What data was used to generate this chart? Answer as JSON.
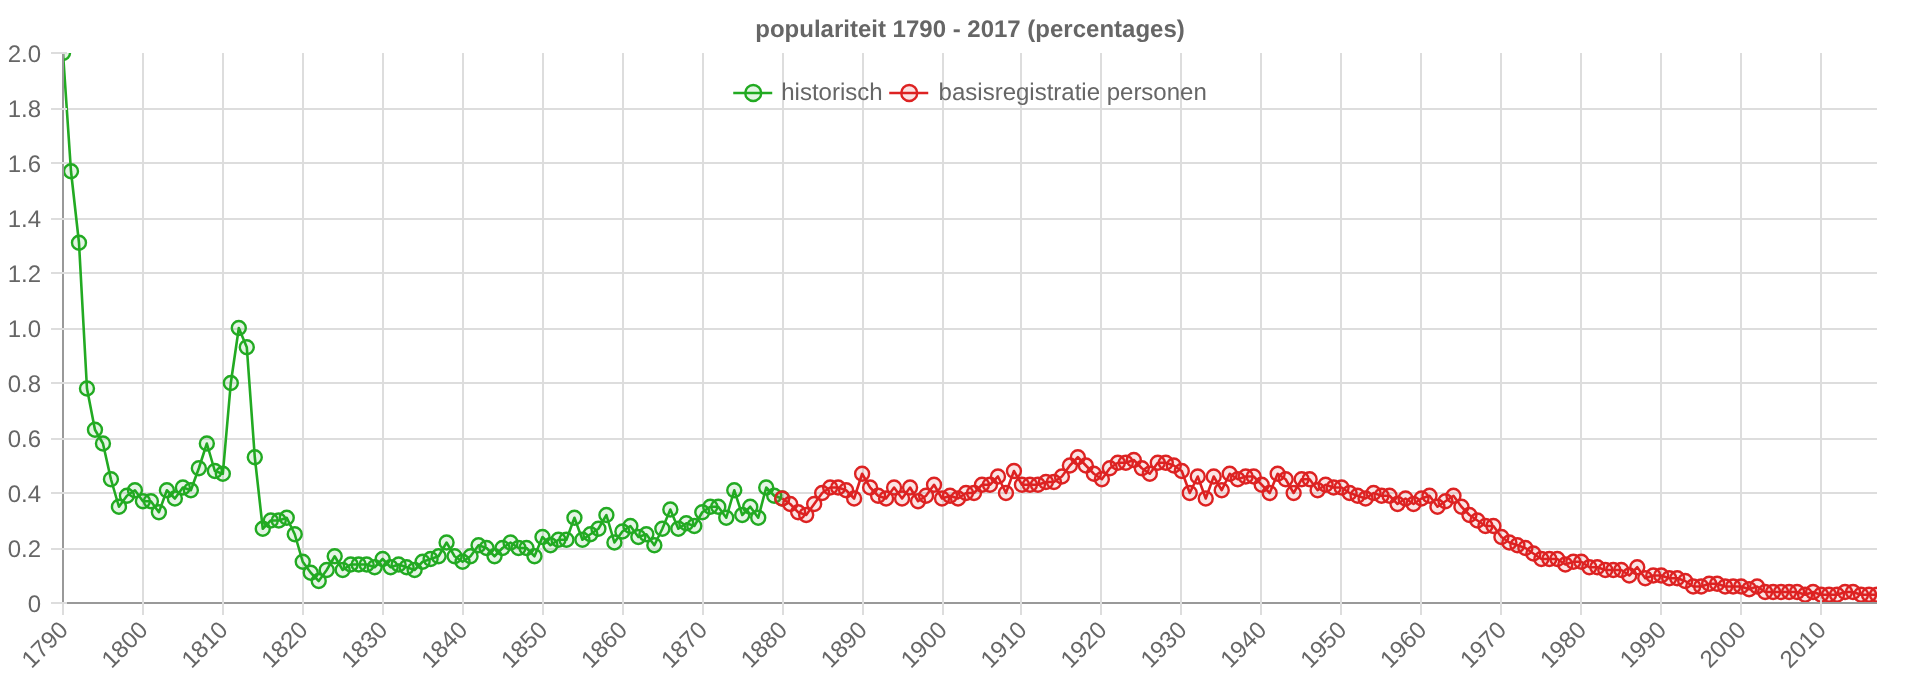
{
  "chart_data": {
    "type": "line",
    "title": "populariteit 1790 - 2017 (percentages)",
    "xlim": [
      1790,
      2017
    ],
    "xticks": [
      1790,
      1800,
      1810,
      1820,
      1830,
      1840,
      1850,
      1860,
      1870,
      1880,
      1890,
      1900,
      1910,
      1920,
      1930,
      1940,
      1950,
      1960,
      1970,
      1980,
      1990,
      2000,
      2010
    ],
    "ylim": [
      0,
      2
    ],
    "yticks": [
      0,
      0.2,
      0.4,
      0.6,
      0.8,
      {
        "value": 1,
        "label": "1.0"
      },
      1.2,
      1.4,
      1.6,
      1.8,
      {
        "value": 2,
        "label": "2.0"
      }
    ],
    "grid": true,
    "legend": "top",
    "marker": "circle",
    "line_style": "solid",
    "series": [
      {
        "name": "historisch",
        "color": "#22aa22",
        "x": [
          1790,
          1791,
          1792,
          1793,
          1794,
          1795,
          1796,
          1797,
          1798,
          1799,
          1800,
          1801,
          1802,
          1803,
          1804,
          1805,
          1806,
          1807,
          1808,
          1809,
          1810,
          1811,
          1812,
          1813,
          1814,
          1815,
          1816,
          1817,
          1818,
          1819,
          1820,
          1821,
          1822,
          1823,
          1824,
          1825,
          1826,
          1827,
          1828,
          1829,
          1830,
          1831,
          1832,
          1833,
          1834,
          1835,
          1836,
          1837,
          1838,
          1839,
          1840,
          1841,
          1842,
          1843,
          1844,
          1845,
          1846,
          1847,
          1848,
          1849,
          1850,
          1851,
          1852,
          1853,
          1854,
          1855,
          1856,
          1857,
          1858,
          1859,
          1860,
          1861,
          1862,
          1863,
          1864,
          1865,
          1866,
          1867,
          1868,
          1869,
          1870,
          1871,
          1872,
          1873,
          1874,
          1875,
          1876,
          1877,
          1878,
          1879,
          1880
        ],
        "values": [
          2.0,
          1.57,
          1.31,
          0.78,
          0.63,
          0.58,
          0.45,
          0.35,
          0.39,
          0.41,
          0.37,
          0.37,
          0.33,
          0.41,
          0.38,
          0.42,
          0.41,
          0.49,
          0.58,
          0.48,
          0.47,
          0.8,
          1.0,
          0.93,
          0.53,
          0.27,
          0.3,
          0.3,
          0.31,
          0.25,
          0.15,
          0.11,
          0.08,
          0.12,
          0.17,
          0.12,
          0.14,
          0.14,
          0.14,
          0.13,
          0.16,
          0.13,
          0.14,
          0.13,
          0.12,
          0.15,
          0.16,
          0.17,
          0.22,
          0.17,
          0.15,
          0.17,
          0.21,
          0.2,
          0.17,
          0.2,
          0.22,
          0.2,
          0.2,
          0.17,
          0.24,
          0.21,
          0.23,
          0.23,
          0.31,
          0.23,
          0.25,
          0.27,
          0.32,
          0.22,
          0.26,
          0.28,
          0.24,
          0.25,
          0.21,
          0.27,
          0.34,
          0.27,
          0.29,
          0.28,
          0.33,
          0.35,
          0.35,
          0.31,
          0.41,
          0.32,
          0.35,
          0.31,
          0.42,
          0.39,
          0.38
        ]
      },
      {
        "name": "basisregistratie personen",
        "color": "#dd2222",
        "x": [
          1880,
          1881,
          1882,
          1883,
          1884,
          1885,
          1886,
          1887,
          1888,
          1889,
          1890,
          1891,
          1892,
          1893,
          1894,
          1895,
          1896,
          1897,
          1898,
          1899,
          1900,
          1901,
          1902,
          1903,
          1904,
          1905,
          1906,
          1907,
          1908,
          1909,
          1910,
          1911,
          1912,
          1913,
          1914,
          1915,
          1916,
          1917,
          1918,
          1919,
          1920,
          1921,
          1922,
          1923,
          1924,
          1925,
          1926,
          1927,
          1928,
          1929,
          1930,
          1931,
          1932,
          1933,
          1934,
          1935,
          1936,
          1937,
          1938,
          1939,
          1940,
          1941,
          1942,
          1943,
          1944,
          1945,
          1946,
          1947,
          1948,
          1949,
          1950,
          1951,
          1952,
          1953,
          1954,
          1955,
          1956,
          1957,
          1958,
          1959,
          1960,
          1961,
          1962,
          1963,
          1964,
          1965,
          1966,
          1967,
          1968,
          1969,
          1970,
          1971,
          1972,
          1973,
          1974,
          1975,
          1976,
          1977,
          1978,
          1979,
          1980,
          1981,
          1982,
          1983,
          1984,
          1985,
          1986,
          1987,
          1988,
          1989,
          1990,
          1991,
          1992,
          1993,
          1994,
          1995,
          1996,
          1997,
          1998,
          1999,
          2000,
          2001,
          2002,
          2003,
          2004,
          2005,
          2006,
          2007,
          2008,
          2009,
          2010,
          2011,
          2012,
          2013,
          2014,
          2015,
          2016,
          2017
        ],
        "values": [
          0.38,
          0.36,
          0.33,
          0.32,
          0.36,
          0.4,
          0.42,
          0.42,
          0.41,
          0.38,
          0.47,
          0.42,
          0.39,
          0.38,
          0.42,
          0.38,
          0.42,
          0.37,
          0.39,
          0.43,
          0.38,
          0.39,
          0.38,
          0.4,
          0.4,
          0.43,
          0.43,
          0.46,
          0.4,
          0.48,
          0.43,
          0.43,
          0.43,
          0.44,
          0.44,
          0.46,
          0.5,
          0.53,
          0.5,
          0.47,
          0.45,
          0.49,
          0.51,
          0.51,
          0.52,
          0.49,
          0.47,
          0.51,
          0.51,
          0.5,
          0.48,
          0.4,
          0.46,
          0.38,
          0.46,
          0.41,
          0.47,
          0.45,
          0.46,
          0.46,
          0.43,
          0.4,
          0.47,
          0.45,
          0.4,
          0.45,
          0.45,
          0.41,
          0.43,
          0.42,
          0.42,
          0.4,
          0.39,
          0.38,
          0.4,
          0.39,
          0.39,
          0.36,
          0.38,
          0.36,
          0.38,
          0.39,
          0.35,
          0.37,
          0.39,
          0.35,
          0.32,
          0.3,
          0.28,
          0.28,
          0.24,
          0.22,
          0.21,
          0.2,
          0.18,
          0.16,
          0.16,
          0.16,
          0.14,
          0.15,
          0.15,
          0.13,
          0.13,
          0.12,
          0.12,
          0.12,
          0.1,
          0.13,
          0.09,
          0.1,
          0.1,
          0.09,
          0.09,
          0.08,
          0.06,
          0.06,
          0.07,
          0.07,
          0.06,
          0.06,
          0.06,
          0.05,
          0.06,
          0.04,
          0.04,
          0.04,
          0.04,
          0.04,
          0.03,
          0.04,
          0.03,
          0.03,
          0.03,
          0.04,
          0.04,
          0.03,
          0.03,
          0.03
        ]
      }
    ]
  }
}
